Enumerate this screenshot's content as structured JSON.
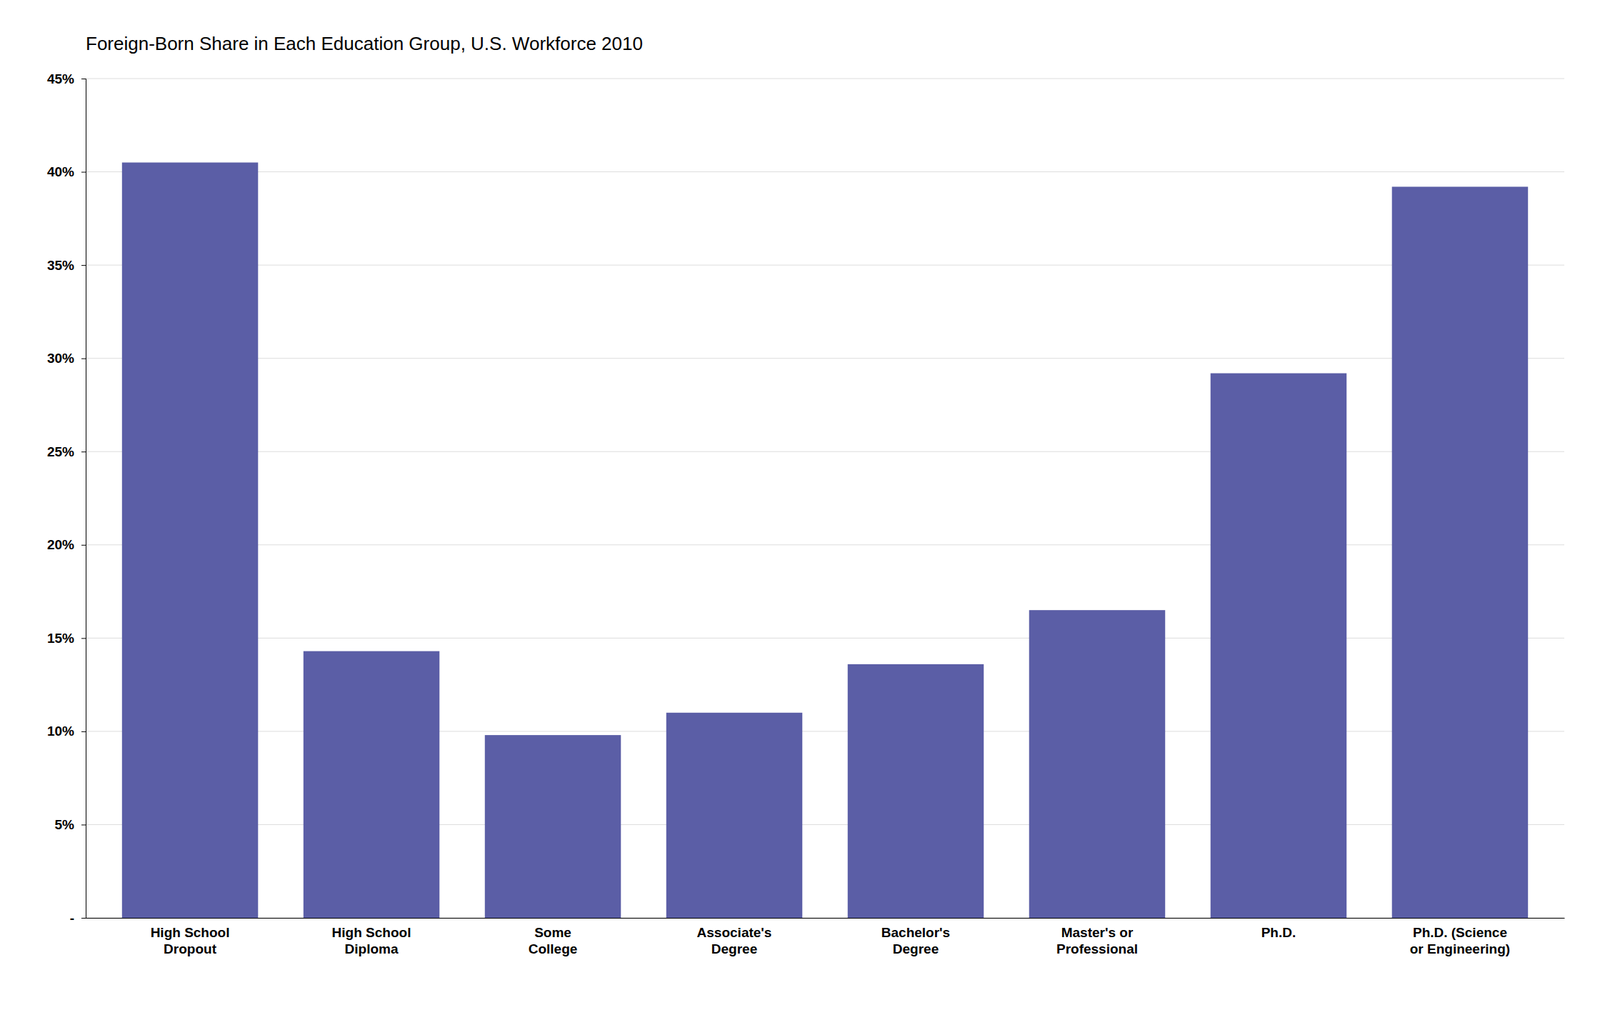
{
  "chart_data": {
    "type": "bar",
    "title": "Foreign-Born Share in Each Education Group, U.S. Workforce 2010",
    "categories": [
      "High School\nDropout",
      "High School\nDiploma",
      "Some\nCollege",
      "Associate's\nDegree",
      "Bachelor's\nDegree",
      "Master's or\nProfessional",
      "Ph.D.",
      "Ph.D. (Science\nor Engineering)"
    ],
    "values": [
      0.405,
      0.143,
      0.098,
      0.11,
      0.136,
      0.165,
      0.292,
      0.392
    ],
    "color": "#5B5EA6",
    "ylim": [
      0,
      0.45
    ],
    "yticks": [
      {
        "value": 0,
        "label": "-"
      },
      {
        "value": 0.05,
        "label": "5%"
      },
      {
        "value": 0.1,
        "label": "10%"
      },
      {
        "value": 0.15,
        "label": "15%"
      },
      {
        "value": 0.2,
        "label": "20%"
      },
      {
        "value": 0.25,
        "label": "25%"
      },
      {
        "value": 0.3,
        "label": "30%"
      },
      {
        "value": 0.35,
        "label": "35%"
      },
      {
        "value": 0.4,
        "label": "40%"
      },
      {
        "value": 0.45,
        "label": "45%"
      }
    ],
    "grid": true
  }
}
